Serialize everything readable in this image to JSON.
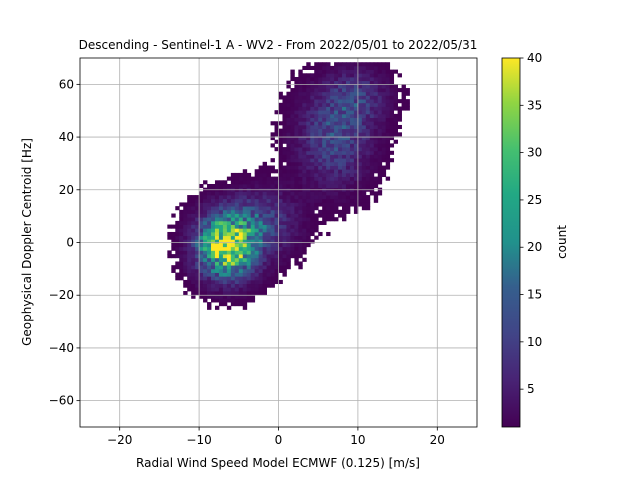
{
  "chart_data": {
    "type": "heatmap",
    "title": "Descending - Sentinel-1 A - WV2 - From 2022/05/01 to 2022/05/31",
    "xlabel": "Radial Wind Speed Model ECMWF (0.125) [m/s]",
    "ylabel": "Geophysical Doppler Centroid [Hz]",
    "xlim": [
      -25,
      25
    ],
    "ylim": [
      -70,
      70
    ],
    "x_ticks": [
      -20,
      -10,
      0,
      10,
      20
    ],
    "x_tick_labels": [
      "−20",
      "−10",
      "0",
      "10",
      "20"
    ],
    "y_ticks": [
      -60,
      -40,
      -20,
      0,
      20,
      40,
      60
    ],
    "y_tick_labels": [
      "−60",
      "−40",
      "−20",
      "0",
      "20",
      "40",
      "60"
    ],
    "grid": true,
    "colormap": "viridis",
    "colorbar": {
      "label": "count",
      "range": [
        1,
        40
      ],
      "ticks": [
        5,
        10,
        15,
        20,
        25,
        30,
        35,
        40
      ],
      "tick_labels": [
        "5",
        "10",
        "15",
        "20",
        "25",
        "30",
        "35",
        "40"
      ]
    },
    "bin_width": [
      0.5,
      1.4
    ],
    "clusters": [
      {
        "center": [
          -6.5,
          -1
        ],
        "sigma": [
          2.5,
          8
        ],
        "peak_count": 38
      },
      {
        "center": [
          -2,
          8
        ],
        "sigma": [
          3,
          8
        ],
        "peak_count": 10
      },
      {
        "center": [
          7,
          40
        ],
        "sigma": [
          3,
          12
        ],
        "peak_count": 12
      },
      {
        "center": [
          10,
          55
        ],
        "sigma": [
          2.5,
          7
        ],
        "peak_count": 8
      }
    ]
  }
}
